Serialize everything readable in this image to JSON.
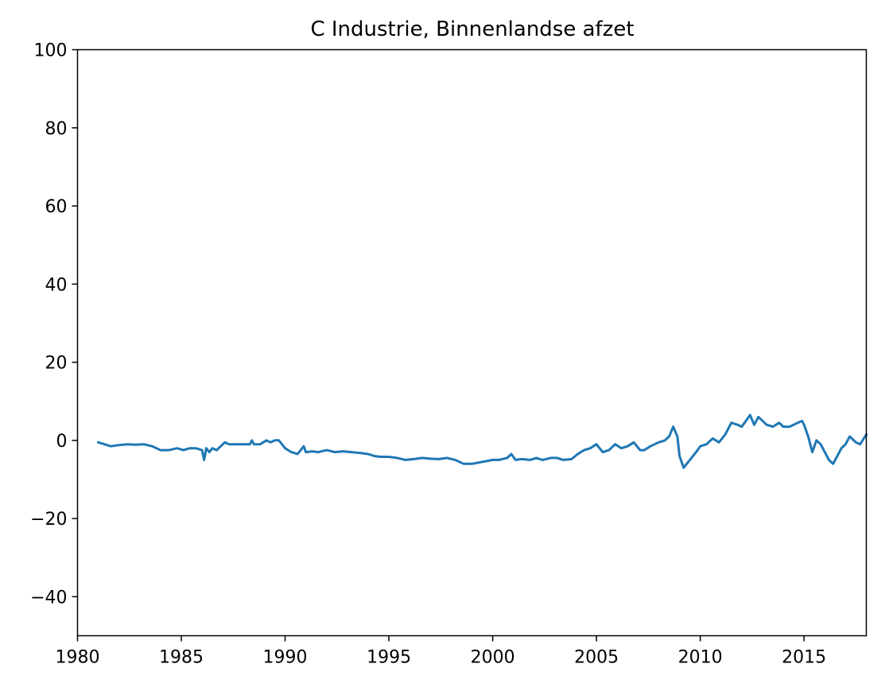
{
  "chart_data": {
    "type": "line",
    "title": "C Industrie, Binnenlandse afzet",
    "xlabel": "",
    "ylabel": "",
    "xlim": [
      1980,
      2018
    ],
    "ylim": [
      -50,
      100
    ],
    "xticks": [
      1980,
      1985,
      1990,
      1995,
      2000,
      2005,
      2010,
      2015
    ],
    "yticks": [
      -40,
      -20,
      0,
      20,
      40,
      60,
      80,
      100
    ],
    "xtick_labels": [
      "1980",
      "1985",
      "1990",
      "1995",
      "2000",
      "2005",
      "2010",
      "2015"
    ],
    "ytick_labels": [
      "−40",
      "−20",
      "0",
      "20",
      "40",
      "60",
      "80",
      "100"
    ],
    "grid": false,
    "colors": {
      "line": "#1f77b4"
    },
    "series": [
      {
        "x": [
          1981.0,
          1981.3,
          1981.6,
          1982.0,
          1982.4,
          1982.8,
          1983.2,
          1983.6,
          1984.0,
          1984.4,
          1984.8,
          1985.1,
          1985.4,
          1985.7,
          1986.0,
          1986.1,
          1986.2,
          1986.35,
          1986.5,
          1986.7,
          1986.9,
          1987.1,
          1987.3,
          1987.6,
          1988.0,
          1988.3,
          1988.4,
          1988.5,
          1988.8,
          1989.1,
          1989.3,
          1989.5,
          1989.7,
          1990.0,
          1990.3,
          1990.6,
          1990.9,
          1991.0,
          1991.3,
          1991.6,
          1992.0,
          1992.4,
          1992.8,
          1993.2,
          1993.6,
          1994.0,
          1994.3,
          1994.6,
          1995.0,
          1995.4,
          1995.8,
          1996.2,
          1996.6,
          1997.0,
          1997.4,
          1997.8,
          1998.2,
          1998.6,
          1999.0,
          1999.5,
          2000.0,
          2000.3,
          2000.7,
          2000.9,
          2001.1,
          2001.4,
          2001.8,
          2002.1,
          2002.4,
          2002.8,
          2003.1,
          2003.4,
          2003.8,
          2004.1,
          2004.4,
          2004.7,
          2005.0,
          2005.3,
          2005.6,
          2005.9,
          2006.2,
          2006.5,
          2006.8,
          2007.1,
          2007.3,
          2007.6,
          2008.0,
          2008.3,
          2008.5,
          2008.7,
          2008.9,
          2009.0,
          2009.2,
          2009.5,
          2009.8,
          2010.0,
          2010.3,
          2010.6,
          2010.9,
          2011.2,
          2011.5,
          2011.8,
          2012.0,
          2012.2,
          2012.4,
          2012.6,
          2012.8,
          2013.0,
          2013.2,
          2013.5,
          2013.8,
          2014.0,
          2014.3,
          2014.5,
          2014.7,
          2014.9,
          2015.0,
          2015.2,
          2015.4,
          2015.6,
          2015.8,
          2016.0,
          2016.2,
          2016.4,
          2016.6,
          2016.8,
          2017.0,
          2017.2,
          2017.5,
          2017.7,
          2018.0
        ],
        "y": [
          -0.5,
          -1.0,
          -1.5,
          -1.2,
          -1.0,
          -1.1,
          -1.0,
          -1.5,
          -2.5,
          -2.5,
          -2.0,
          -2.5,
          -2.0,
          -2.0,
          -2.5,
          -5.0,
          -2.0,
          -3.0,
          -2.0,
          -2.5,
          -1.5,
          -0.5,
          -1.0,
          -1.0,
          -1.0,
          -1.0,
          0.0,
          -1.0,
          -1.0,
          0.0,
          -0.5,
          0.0,
          0.0,
          -2.0,
          -3.0,
          -3.5,
          -1.5,
          -3.0,
          -2.8,
          -3.0,
          -2.5,
          -3.0,
          -2.8,
          -3.0,
          -3.2,
          -3.5,
          -4.0,
          -4.2,
          -4.2,
          -4.5,
          -5.0,
          -4.8,
          -4.5,
          -4.7,
          -4.8,
          -4.5,
          -5.0,
          -6.0,
          -6.0,
          -5.5,
          -5.0,
          -5.0,
          -4.5,
          -3.5,
          -5.0,
          -4.8,
          -5.0,
          -4.5,
          -5.0,
          -4.5,
          -4.5,
          -5.0,
          -4.8,
          -3.5,
          -2.5,
          -2.0,
          -1.0,
          -3.0,
          -2.5,
          -1.0,
          -2.0,
          -1.5,
          -0.5,
          -2.5,
          -2.5,
          -1.5,
          -0.5,
          0.0,
          1.0,
          3.5,
          1.0,
          -4.0,
          -7.0,
          -5.0,
          -3.0,
          -1.5,
          -1.0,
          0.5,
          -0.5,
          1.5,
          4.5,
          4.0,
          3.5,
          5.0,
          6.5,
          4.0,
          6.0,
          5.0,
          4.0,
          3.5,
          4.5,
          3.5,
          3.5,
          4.0,
          4.5,
          5.0,
          4.0,
          1.0,
          -3.0,
          0.0,
          -1.0,
          -3.0,
          -5.0,
          -6.0,
          -4.0,
          -2.0,
          -1.0,
          1.0,
          -0.5,
          -1.0,
          1.5
        ]
      }
    ]
  }
}
